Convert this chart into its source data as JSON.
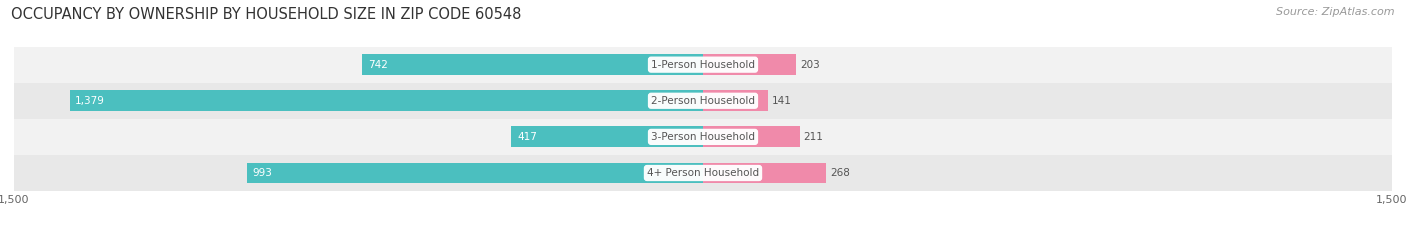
{
  "title": "OCCUPANCY BY OWNERSHIP BY HOUSEHOLD SIZE IN ZIP CODE 60548",
  "source": "Source: ZipAtlas.com",
  "categories": [
    "1-Person Household",
    "2-Person Household",
    "3-Person Household",
    "4+ Person Household"
  ],
  "owner_values": [
    742,
    1379,
    417,
    993
  ],
  "renter_values": [
    203,
    141,
    211,
    268
  ],
  "owner_color": "#4bbfbf",
  "renter_color": "#f08aaa",
  "row_bg_colors": [
    "#f2f2f2",
    "#e8e8e8",
    "#f2f2f2",
    "#e8e8e8"
  ],
  "axis_max": 1500,
  "title_fontsize": 10.5,
  "source_fontsize": 8,
  "label_fontsize": 7.5,
  "tick_fontsize": 8,
  "legend_fontsize": 8,
  "background_color": "#ffffff",
  "center_label_color": "#555555",
  "value_label_color_inside": "#ffffff",
  "value_label_color_outside": "#555555"
}
